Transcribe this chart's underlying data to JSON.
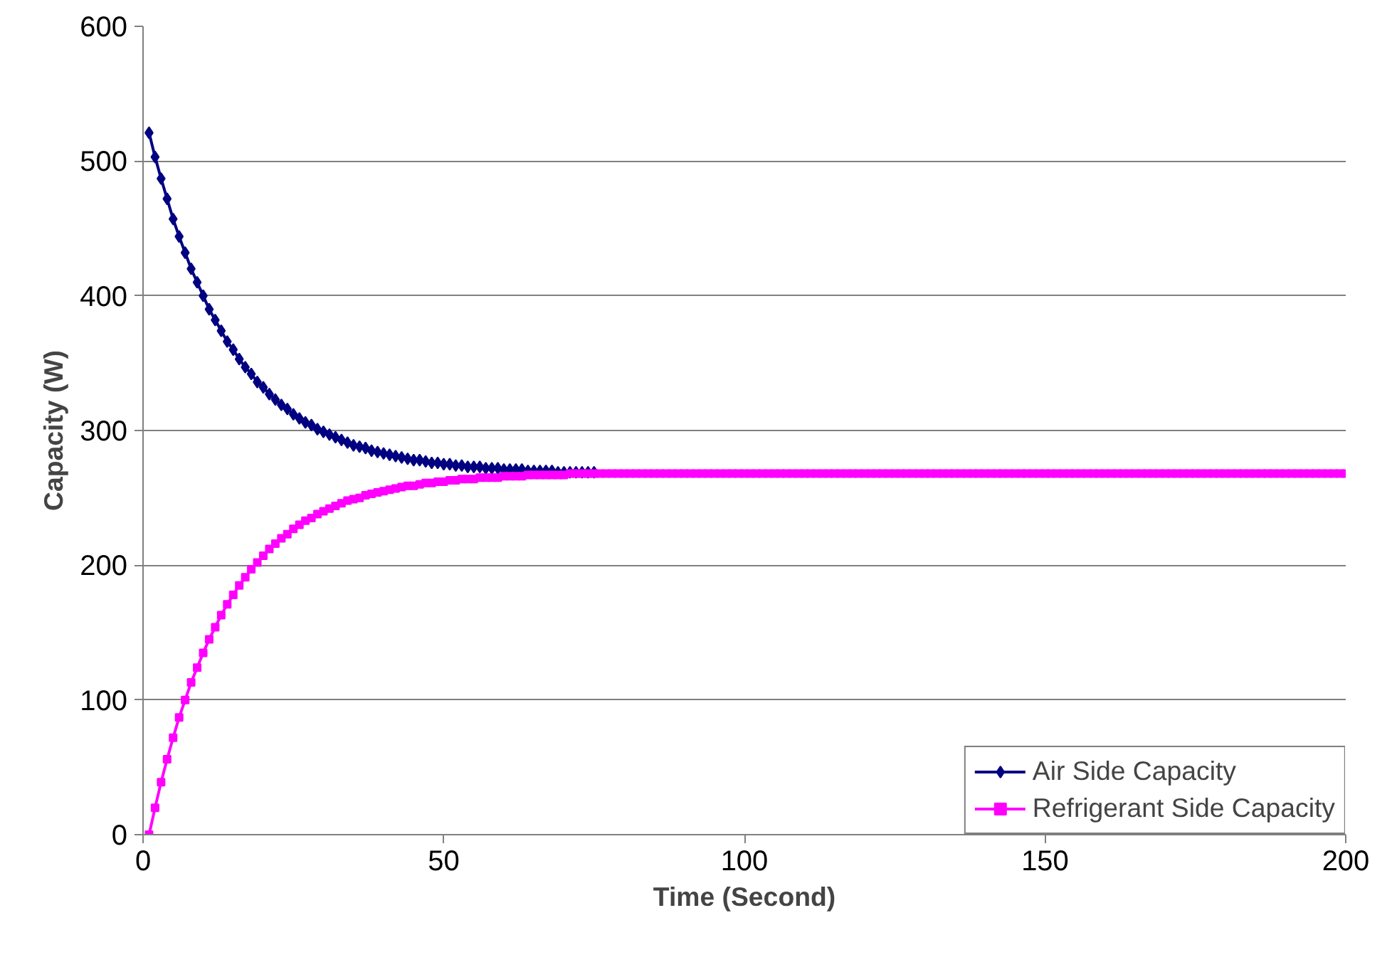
{
  "chart_data": {
    "type": "line",
    "xlabel": "Time (Second)",
    "ylabel": "Capacity (W)",
    "x": [
      1,
      2,
      3,
      4,
      5,
      6,
      7,
      8,
      9,
      10,
      11,
      12,
      13,
      14,
      15,
      16,
      17,
      18,
      19,
      20,
      21,
      22,
      23,
      24,
      25,
      26,
      27,
      28,
      29,
      30,
      31,
      32,
      33,
      34,
      35,
      36,
      37,
      38,
      39,
      40,
      41,
      42,
      43,
      44,
      45,
      46,
      47,
      48,
      49,
      50,
      51,
      52,
      53,
      54,
      55,
      56,
      57,
      58,
      59,
      60,
      61,
      62,
      63,
      64,
      65,
      66,
      67,
      68,
      69,
      70,
      71,
      72,
      73,
      74,
      75,
      76,
      77,
      78,
      79,
      80,
      81,
      82,
      83,
      84,
      85,
      86,
      87,
      88,
      89,
      90,
      91,
      92,
      93,
      94,
      95,
      96,
      97,
      98,
      99,
      100,
      101,
      102,
      103,
      104,
      105,
      106,
      107,
      108,
      109,
      110,
      111,
      112,
      113,
      114,
      115,
      116,
      117,
      118,
      119,
      120,
      121,
      122,
      123,
      124,
      125,
      126,
      127,
      128,
      129,
      130,
      131,
      132,
      133,
      134,
      135,
      136,
      137,
      138,
      139,
      140,
      141,
      142,
      143,
      144,
      145,
      146,
      147,
      148,
      149,
      150,
      151,
      152,
      153,
      154,
      155,
      156,
      157,
      158,
      159,
      160,
      161,
      162,
      163,
      164,
      165,
      166,
      167,
      168,
      169,
      170,
      171,
      172,
      173,
      174,
      175,
      176,
      177,
      178,
      179,
      180,
      181,
      182,
      183,
      184,
      185,
      186,
      187,
      188,
      189,
      190,
      191,
      192,
      193,
      194,
      195,
      196,
      197,
      198,
      199,
      200
    ],
    "series": [
      {
        "name": "Air Side Capacity",
        "color": "#000080",
        "marker": "diamond",
        "values": [
          521,
          503,
          487,
          472,
          457,
          444,
          432,
          420,
          410,
          400,
          390,
          382,
          374,
          366,
          360,
          353,
          347,
          342,
          336,
          332,
          327,
          323,
          319,
          316,
          312,
          309,
          306,
          304,
          301,
          299,
          297,
          295,
          293,
          291,
          289,
          288,
          287,
          285,
          284,
          283,
          282,
          281,
          280,
          279,
          278,
          278,
          277,
          276,
          276,
          275,
          275,
          274,
          274,
          273,
          273,
          273,
          272,
          272,
          272,
          271,
          271,
          271,
          271,
          270,
          270,
          270,
          270,
          270,
          269,
          269,
          269,
          269,
          269,
          269,
          269,
          null,
          null,
          null,
          null,
          null,
          null,
          null,
          null,
          null,
          null,
          null,
          null,
          null,
          null,
          null,
          null,
          null,
          null,
          null,
          null,
          null,
          null,
          null,
          null,
          null,
          null,
          null,
          null,
          null,
          null,
          null,
          null,
          null,
          null,
          null,
          null,
          null,
          null,
          null,
          null,
          null,
          null,
          null,
          null,
          null,
          null,
          null,
          null,
          null,
          null,
          null,
          null,
          null,
          null,
          null,
          null,
          null,
          null,
          null,
          null,
          null,
          null,
          null,
          null,
          null,
          null,
          null,
          null,
          null,
          null,
          null,
          null,
          null,
          null,
          null,
          null,
          null,
          null,
          null,
          null,
          null,
          null,
          null,
          null,
          null,
          null,
          null,
          null,
          null,
          null,
          null,
          null,
          null,
          null,
          null,
          null,
          null,
          null,
          null,
          null,
          null,
          null,
          null,
          null,
          null,
          null,
          null,
          null,
          null,
          null,
          null,
          null,
          null,
          null,
          null,
          null,
          null,
          null,
          null,
          null,
          null,
          null,
          null,
          null,
          null
        ]
      },
      {
        "name": "Refrigerant Side Capacity",
        "color": "#ff00ff",
        "marker": "square",
        "values": [
          0,
          20,
          39,
          56,
          72,
          87,
          100,
          113,
          124,
          135,
          145,
          154,
          163,
          171,
          178,
          185,
          191,
          197,
          202,
          207,
          212,
          216,
          220,
          223,
          227,
          230,
          233,
          235,
          238,
          240,
          242,
          244,
          246,
          248,
          249,
          250,
          252,
          253,
          254,
          255,
          256,
          257,
          258,
          259,
          259,
          260,
          261,
          261,
          262,
          262,
          263,
          263,
          264,
          264,
          264,
          265,
          265,
          265,
          265,
          266,
          266,
          266,
          266,
          267,
          267,
          267,
          267,
          267,
          267,
          267,
          268,
          268,
          268,
          268,
          268,
          268,
          268,
          268,
          268,
          268,
          268,
          268,
          268,
          268,
          268,
          268,
          268,
          268,
          268,
          268,
          268,
          268,
          268,
          268,
          268,
          268,
          268,
          268,
          268,
          268,
          268,
          268,
          268,
          268,
          268,
          268,
          268,
          268,
          268,
          268,
          268,
          268,
          268,
          268,
          268,
          268,
          268,
          268,
          268,
          268,
          268,
          268,
          268,
          268,
          268,
          268,
          268,
          268,
          268,
          268,
          268,
          268,
          268,
          268,
          268,
          268,
          268,
          268,
          268,
          268,
          268,
          268,
          268,
          268,
          268,
          268,
          268,
          268,
          268,
          268,
          268,
          268,
          268,
          268,
          268,
          268,
          268,
          268,
          268,
          268,
          268,
          268,
          268,
          268,
          268,
          268,
          268,
          268,
          268,
          268,
          268,
          268,
          268,
          268,
          268,
          268,
          268,
          268,
          268,
          268,
          268,
          268,
          268,
          268,
          268,
          268,
          268,
          268,
          268,
          268,
          268,
          268,
          268,
          268,
          268,
          268,
          268,
          268,
          268,
          268
        ]
      }
    ],
    "xlim": [
      0,
      200
    ],
    "xticks": [
      0,
      50,
      100,
      150,
      200
    ],
    "ylim": [
      0,
      600
    ],
    "yticks": [
      0,
      100,
      200,
      300,
      400,
      500,
      600
    ],
    "grid": "y",
    "legend": "bottom right",
    "line_style": "solid"
  }
}
